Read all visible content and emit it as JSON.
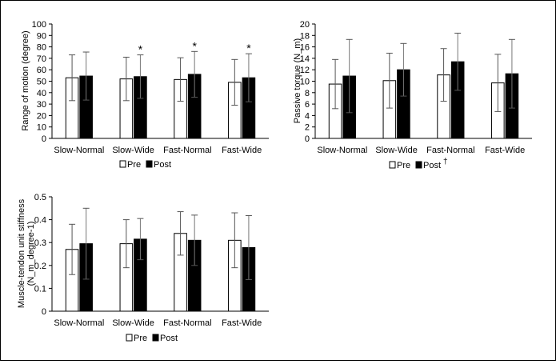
{
  "legend": {
    "pre_label": "Pre",
    "post_label": "Post"
  },
  "chart_data": [
    {
      "type": "bar",
      "categories": [
        "Slow-Normal",
        "Slow-Wide",
        "Fast-Normal",
        "Fast-Wide"
      ],
      "ylabel": "Range of motion (degree)",
      "ylim": [
        0,
        100
      ],
      "yticks": [
        "0",
        "10",
        "20",
        "30",
        "40",
        "50",
        "60",
        "70",
        "80",
        "90",
        "100"
      ],
      "series": [
        {
          "name": "Pre",
          "values": [
            53,
            52,
            51.5,
            49
          ],
          "err": [
            20,
            19,
            19,
            20
          ]
        },
        {
          "name": "Post",
          "values": [
            54.5,
            54,
            56,
            53
          ],
          "err": [
            21,
            19,
            20,
            21
          ]
        }
      ],
      "annotations": [
        "",
        "*",
        "*",
        "*"
      ],
      "legend_extra": "",
      "legend_position": "bottom"
    },
    {
      "type": "bar",
      "categories": [
        "Slow-Normal",
        "Slow-Wide",
        "Fast-Normal",
        "Fast-Wide"
      ],
      "ylabel": "Passive torque (N_m)",
      "ylim": [
        0,
        20
      ],
      "yticks": [
        "0",
        "2",
        "4",
        "6",
        "8",
        "10",
        "12",
        "14",
        "16",
        "18",
        "20"
      ],
      "series": [
        {
          "name": "Pre",
          "values": [
            9.5,
            10.1,
            11.1,
            9.7
          ],
          "err": [
            4.3,
            4.8,
            4.6,
            5.0
          ]
        },
        {
          "name": "Post",
          "values": [
            10.9,
            12.0,
            13.4,
            11.3
          ],
          "err": [
            6.4,
            4.6,
            5.0,
            6.0
          ]
        }
      ],
      "annotations": [
        "",
        "",
        "",
        ""
      ],
      "legend_extra": "†",
      "legend_position": "bottom"
    },
    {
      "type": "bar",
      "categories": [
        "Slow-Normal",
        "Slow-Wide",
        "Fast-Normal",
        "Fast-Wide"
      ],
      "ylabel": "Muscle-tendon unit stiffness (N_m_degree-1)",
      "ylabel_lines": [
        "Muscle-tendon unit stiffness",
        "(N_m_degree-1)"
      ],
      "ylim": [
        0,
        0.5
      ],
      "yticks": [
        "0",
        "0.1",
        "0.2",
        "0.3",
        "0.4",
        "0.5"
      ],
      "series": [
        {
          "name": "Pre",
          "values": [
            0.27,
            0.295,
            0.34,
            0.31
          ],
          "err": [
            0.11,
            0.105,
            0.095,
            0.12
          ]
        },
        {
          "name": "Post",
          "values": [
            0.295,
            0.315,
            0.31,
            0.278
          ],
          "err": [
            0.155,
            0.09,
            0.11,
            0.14
          ]
        }
      ],
      "annotations": [
        "",
        "",
        "",
        ""
      ],
      "legend_extra": "",
      "legend_position": "bottom"
    }
  ]
}
